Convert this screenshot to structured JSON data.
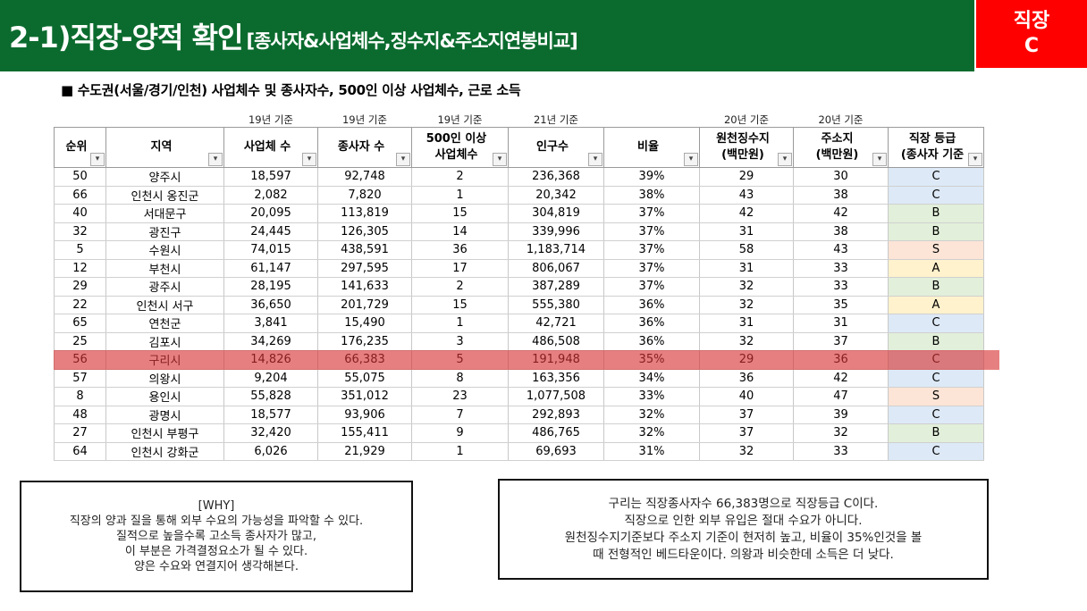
{
  "header": {
    "title": "2-1)직장-양적 확인",
    "subtitle": "[종사자&사업체수,징수지&주소지연봉비교]",
    "badge": [
      "직장",
      "C"
    ]
  },
  "table_title": "■ 수도권(서울/경기/인천) 사업체수 및 종사자수, 500인 이상 사업체수, 근로 소득",
  "table": {
    "columns": [
      {
        "header": [
          "순위"
        ]
      },
      {
        "header": [
          "지역"
        ]
      },
      {
        "note": "19년 기준",
        "header": [
          "사업체 수"
        ]
      },
      {
        "note": "19년 기준",
        "header": [
          "종사자 수"
        ]
      },
      {
        "note": "19년 기준",
        "header": [
          "500인 이상",
          "사업체수"
        ]
      },
      {
        "note": "21년 기준",
        "header": [
          "인구수"
        ]
      },
      {
        "header": [
          "비율"
        ]
      },
      {
        "note": "20년 기준",
        "header": [
          "원천징수지",
          "(백만원)"
        ]
      },
      {
        "note": "20년 기준",
        "header": [
          "주소지",
          "(백만원)"
        ]
      },
      {
        "header": [
          "직장 등급",
          "(종사자 기준"
        ]
      }
    ],
    "grade_colors": {
      "C": "#dde9f6",
      "B": "#e2efda",
      "S": "#fce4d6",
      "A": "#fff2cc"
    },
    "highlighted_row": 10,
    "rows": [
      [
        "50",
        "양주시",
        "18,597",
        "92,748",
        "2",
        "236,368",
        "39%",
        "29",
        "30",
        "C"
      ],
      [
        "66",
        "인천시 옹진군",
        "2,082",
        "7,820",
        "1",
        "20,342",
        "38%",
        "43",
        "38",
        "C"
      ],
      [
        "40",
        "서대문구",
        "20,095",
        "113,819",
        "15",
        "304,819",
        "37%",
        "42",
        "42",
        "B"
      ],
      [
        "32",
        "광진구",
        "24,445",
        "126,305",
        "14",
        "339,996",
        "37%",
        "31",
        "38",
        "B"
      ],
      [
        "5",
        "수원시",
        "74,015",
        "438,591",
        "36",
        "1,183,714",
        "37%",
        "58",
        "43",
        "S"
      ],
      [
        "12",
        "부천시",
        "61,147",
        "297,595",
        "17",
        "806,067",
        "37%",
        "31",
        "33",
        "A"
      ],
      [
        "29",
        "광주시",
        "28,195",
        "141,633",
        "2",
        "387,289",
        "37%",
        "32",
        "33",
        "B"
      ],
      [
        "22",
        "인천시 서구",
        "36,650",
        "201,729",
        "15",
        "555,380",
        "36%",
        "32",
        "35",
        "A"
      ],
      [
        "65",
        "연천군",
        "3,841",
        "15,490",
        "1",
        "42,721",
        "36%",
        "31",
        "31",
        "C"
      ],
      [
        "25",
        "김포시",
        "34,269",
        "176,235",
        "3",
        "486,508",
        "36%",
        "32",
        "37",
        "B"
      ],
      [
        "56",
        "구리시",
        "14,826",
        "66,383",
        "5",
        "191,948",
        "35%",
        "29",
        "36",
        "C"
      ],
      [
        "57",
        "의왕시",
        "9,204",
        "55,075",
        "8",
        "163,356",
        "34%",
        "36",
        "42",
        "C"
      ],
      [
        "8",
        "용인시",
        "55,828",
        "351,012",
        "23",
        "1,077,508",
        "33%",
        "40",
        "47",
        "S"
      ],
      [
        "48",
        "광명시",
        "18,577",
        "93,906",
        "7",
        "292,893",
        "32%",
        "37",
        "39",
        "C"
      ],
      [
        "27",
        "인천시 부평구",
        "32,420",
        "155,411",
        "9",
        "486,765",
        "32%",
        "37",
        "32",
        "B"
      ],
      [
        "64",
        "인천시 강화군",
        "6,026",
        "21,929",
        "1",
        "69,693",
        "31%",
        "32",
        "33",
        "C"
      ]
    ]
  },
  "notes": {
    "why": [
      "[WHY]",
      "직장의 양과 질을 통해 외부 수요의 가능성을 파악할 수 있다.",
      "질적으로 높을수록 고소득 종사자가 많고,",
      "이 부분은 가격결정요소가 될 수 있다.",
      "양은 수요와 연결지어 생각해본다."
    ],
    "summary": [
      "구리는 직장종사자수 66,383명으로 직장등급 C이다.",
      "직장으로 인한 외부 유입은 절대 수요가 아니다.",
      "원천징수지기준보다 주소지 기준이 현저히 높고, 비율이 35%인것을 볼",
      "때 전형적인 베드타운이다. 의왕과 비슷한데 소득은 더 낮다."
    ]
  }
}
